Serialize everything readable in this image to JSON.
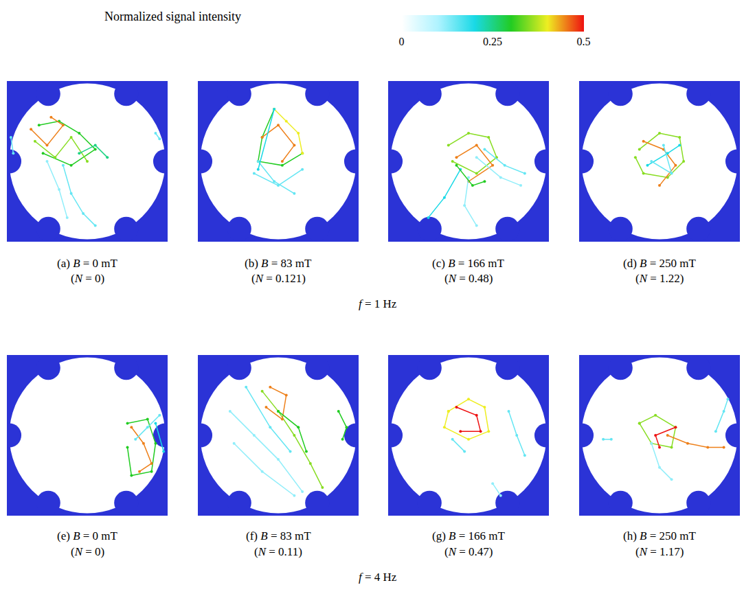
{
  "chart_data": {
    "type": "scatter",
    "tick_labels": false,
    "xlim": [
      -1,
      1
    ],
    "ylim": [
      -1,
      1
    ],
    "colorbar": {
      "title": "Normalized signal intensity",
      "range": [
        0,
        0.5
      ],
      "ticks": [
        0,
        0.25,
        0.5
      ]
    },
    "rows": [
      {
        "label": "f = 1 Hz",
        "panels": [
          {
            "label": "(a) B = 0 mT",
            "sublabel": "(N = 0)",
            "tracks": [
              {
                "x": [
                  -0.6,
                  -0.35,
                  -0.1,
                  0.1,
                  -0.2,
                  -0.55
                ],
                "y": [
                  0.45,
                  0.5,
                  0.35,
                  0.15,
                  -0.05,
                  0.1
                ],
                "value": 0.3
              },
              {
                "x": [
                  -0.65,
                  -0.4,
                  -0.2,
                  0.0
                ],
                "y": [
                  0.25,
                  0.05,
                  0.3,
                  0.0
                ],
                "value": 0.35
              },
              {
                "x": [
                  -0.7,
                  -0.5,
                  -0.3,
                  -0.45
                ],
                "y": [
                  0.4,
                  0.2,
                  0.45,
                  0.55
                ],
                "value": 0.45
              },
              {
                "x": [
                  -0.3,
                  -0.2,
                  -0.05,
                  0.1
                ],
                "y": [
                  -0.05,
                  -0.4,
                  -0.65,
                  -0.8
                ],
                "value": 0.15
              },
              {
                "x": [
                  -0.5,
                  -0.35,
                  -0.25
                ],
                "y": [
                  0.0,
                  -0.35,
                  -0.7
                ],
                "value": 0.12
              },
              {
                "x": [
                  -0.1,
                  0.1,
                  0.25
                ],
                "y": [
                  0.1,
                  0.2,
                  0.05
                ],
                "value": 0.25
              },
              {
                "x": [
                  -0.95,
                  -0.92
                ],
                "y": [
                  0.3,
                  0.1
                ],
                "value": 0.15
              },
              {
                "x": [
                  0.85,
                  0.9
                ],
                "y": [
                  0.35,
                  0.28
                ],
                "value": 0.15
              }
            ]
          },
          {
            "label": "(b) B = 83 mT",
            "sublabel": "(N = 0.121)",
            "tracks": [
              {
                "x": [
                  -0.05,
                  -0.2,
                  -0.25,
                  0.05,
                  0.3
                ],
                "y": [
                  0.65,
                  0.3,
                  0.0,
                  -0.05,
                  0.1
                ],
                "value": 0.3
              },
              {
                "x": [
                  -0.05,
                  0.1,
                  0.25,
                  0.3
                ],
                "y": [
                  0.65,
                  0.5,
                  0.35,
                  0.1
                ],
                "value": 0.4
              },
              {
                "x": [
                  -0.2,
                  0.0,
                  0.2,
                  0.05
                ],
                "y": [
                  0.3,
                  0.45,
                  0.2,
                  0.0
                ],
                "value": 0.45
              },
              {
                "x": [
                  -0.25,
                  -0.05,
                  0.2
                ],
                "y": [
                  0.0,
                  -0.25,
                  -0.4
                ],
                "value": 0.15
              },
              {
                "x": [
                  -0.3,
                  0.0,
                  0.3
                ],
                "y": [
                  -0.15,
                  -0.3,
                  -0.1
                ],
                "value": 0.15
              },
              {
                "x": [
                  -0.05,
                  -0.25
                ],
                "y": [
                  0.65,
                  -0.1
                ],
                "value": 0.2
              }
            ]
          },
          {
            "label": "(c) B = 166 mT",
            "sublabel": "(N = 0.48)",
            "tracks": [
              {
                "x": [
                  -0.25,
                  0.0,
                  0.25,
                  0.35,
                  0.1,
                  -0.2
                ],
                "y": [
                  0.2,
                  0.35,
                  0.3,
                  0.05,
                  -0.15,
                  0.0
                ],
                "value": 0.35
              },
              {
                "x": [
                  -0.15,
                  0.1,
                  0.3,
                  0.0
                ],
                "y": [
                  0.05,
                  0.2,
                  -0.05,
                  -0.25
                ],
                "value": 0.45
              },
              {
                "x": [
                  0.2,
                  0.45,
                  0.7
                ],
                "y": [
                  0.15,
                  -0.05,
                  -0.15
                ],
                "value": 0.15
              },
              {
                "x": [
                  0.1,
                  0.4,
                  0.65
                ],
                "y": [
                  0.05,
                  -0.2,
                  -0.3
                ],
                "value": 0.12
              },
              {
                "x": [
                  -0.1,
                  -0.3,
                  -0.5
                ],
                "y": [
                  -0.1,
                  -0.45,
                  -0.7
                ],
                "value": 0.2
              },
              {
                "x": [
                  0.0,
                  -0.05,
                  0.1
                ],
                "y": [
                  -0.2,
                  -0.55,
                  -0.8
                ],
                "value": 0.12
              },
              {
                "x": [
                  -0.15,
                  0.05,
                  0.2
                ],
                "y": [
                  -0.05,
                  -0.3,
                  -0.25
                ],
                "value": 0.3
              }
            ]
          },
          {
            "label": "(d) B = 250 mT",
            "sublabel": "(N = 1.22)",
            "tracks": [
              {
                "x": [
                  -0.25,
                  0.0,
                  0.25,
                  0.3,
                  0.1,
                  -0.2,
                  -0.3
                ],
                "y": [
                  0.15,
                  0.35,
                  0.3,
                  0.0,
                  -0.2,
                  -0.15,
                  0.05
                ],
                "value": 0.35
              },
              {
                "x": [
                  -0.2,
                  0.05,
                  0.2,
                  0.0
                ],
                "y": [
                  0.25,
                  0.15,
                  -0.05,
                  -0.3
                ],
                "value": 0.45
              },
              {
                "x": [
                  -0.15,
                  0.1,
                  0.25
                ],
                "y": [
                  -0.05,
                  0.1,
                  0.2
                ],
                "value": 0.2
              },
              {
                "x": [
                  -0.1,
                  0.15,
                  0.05
                ],
                "y": [
                  0.0,
                  -0.15,
                  0.2
                ],
                "value": 0.15
              }
            ]
          }
        ]
      },
      {
        "label": "f = 4 Hz",
        "panels": [
          {
            "label": "(e) B = 0 mT",
            "sublabel": "(N = 0)",
            "tracks": [
              {
                "x": [
                  0.5,
                  0.75,
                  0.85,
                  0.8,
                  0.55,
                  0.5
                ],
                "y": [
                  0.15,
                  0.2,
                  -0.1,
                  -0.45,
                  -0.5,
                  -0.15
                ],
                "value": 0.3
              },
              {
                "x": [
                  0.55,
                  0.7,
                  0.8,
                  0.65
                ],
                "y": [
                  0.1,
                  -0.1,
                  -0.35,
                  -0.45
                ],
                "value": 0.45
              },
              {
                "x": [
                  0.6,
                  0.75,
                  0.9
                ],
                "y": [
                  -0.05,
                  0.1,
                  0.25
                ],
                "value": 0.15
              },
              {
                "x": [
                  0.85,
                  0.95
                ],
                "y": [
                  0.15,
                  -0.2
                ],
                "value": 0.2
              }
            ]
          },
          {
            "label": "(f) B = 83 mT",
            "sublabel": "(N = 0.11)",
            "tracks": [
              {
                "x": [
                  -0.2,
                  0.0,
                  0.2,
                  0.4,
                  0.55
                ],
                "y": [
                  0.55,
                  0.3,
                  0.0,
                  -0.35,
                  -0.65
                ],
                "value": 0.35
              },
              {
                "x": [
                  -0.1,
                  0.1,
                  0.05,
                  -0.15
                ],
                "y": [
                  0.6,
                  0.5,
                  0.2,
                  0.35
                ],
                "value": 0.45
              },
              {
                "x": [
                  -0.6,
                  -0.3,
                  0.0,
                  0.3
                ],
                "y": [
                  0.3,
                  0.0,
                  -0.3,
                  -0.7
                ],
                "value": 0.12
              },
              {
                "x": [
                  -0.55,
                  -0.2,
                  0.2
                ],
                "y": [
                  -0.1,
                  -0.45,
                  -0.75
                ],
                "value": 0.12
              },
              {
                "x": [
                  -0.4,
                  -0.1,
                  0.15
                ],
                "y": [
                  0.6,
                  0.1,
                  -0.2
                ],
                "value": 0.15
              },
              {
                "x": [
                  0.75,
                  0.85,
                  0.8
                ],
                "y": [
                  0.3,
                  0.1,
                  -0.05
                ],
                "value": 0.3
              },
              {
                "x": [
                  0.0,
                  0.25,
                  0.35
                ],
                "y": [
                  0.3,
                  0.1,
                  -0.2
                ],
                "value": 0.3
              }
            ]
          },
          {
            "label": "(g) B = 166 mT",
            "sublabel": "(N = 0.47)",
            "tracks": [
              {
                "x": [
                  -0.25,
                  0.0,
                  0.2,
                  0.25,
                  0.0,
                  -0.3,
                  -0.25
                ],
                "y": [
                  0.3,
                  0.45,
                  0.35,
                  0.05,
                  -0.05,
                  0.1,
                  0.3
                ],
                "value": 0.4
              },
              {
                "x": [
                  -0.15,
                  0.1,
                  0.15,
                  -0.1
                ],
                "y": [
                  0.35,
                  0.25,
                  0.05,
                  0.05
                ],
                "value": 0.5
              },
              {
                "x": [
                  0.5,
                  0.6,
                  0.7
                ],
                "y": [
                  0.3,
                  0.0,
                  -0.25
                ],
                "value": 0.15
              },
              {
                "x": [
                  0.3,
                  0.4
                ],
                "y": [
                  -0.6,
                  -0.75
                ],
                "value": 0.12
              },
              {
                "x": [
                  -0.2,
                  -0.05
                ],
                "y": [
                  -0.05,
                  -0.2
                ],
                "value": 0.15
              }
            ]
          },
          {
            "label": "(h) B = 250 mT",
            "sublabel": "(N = 1.17)",
            "tracks": [
              {
                "x": [
                  -0.25,
                  -0.05,
                  0.2,
                  0.15,
                  -0.1,
                  -0.25
                ],
                "y": [
                  0.15,
                  0.25,
                  0.1,
                  -0.15,
                  -0.1,
                  0.15
                ],
                "value": 0.35
              },
              {
                "x": [
                  0.1,
                  0.35,
                  0.6,
                  0.8
                ],
                "y": [
                  0.0,
                  -0.1,
                  -0.15,
                  -0.15
                ],
                "value": 0.45
              },
              {
                "x": [
                  -0.1,
                  0.0,
                  0.15
                ],
                "y": [
                  -0.1,
                  -0.4,
                  -0.55
                ],
                "value": 0.12
              },
              {
                "x": [
                  0.7,
                  0.8,
                  0.85
                ],
                "y": [
                  0.05,
                  0.3,
                  0.45
                ],
                "value": 0.15
              },
              {
                "x": [
                  -0.7,
                  -0.6
                ],
                "y": [
                  -0.05,
                  -0.05
                ],
                "value": 0.15
              },
              {
                "x": [
                  0.2,
                  -0.05,
                  0.0
                ],
                "y": [
                  0.1,
                  0.0,
                  -0.15
                ],
                "value": 0.5
              }
            ]
          }
        ]
      }
    ]
  }
}
